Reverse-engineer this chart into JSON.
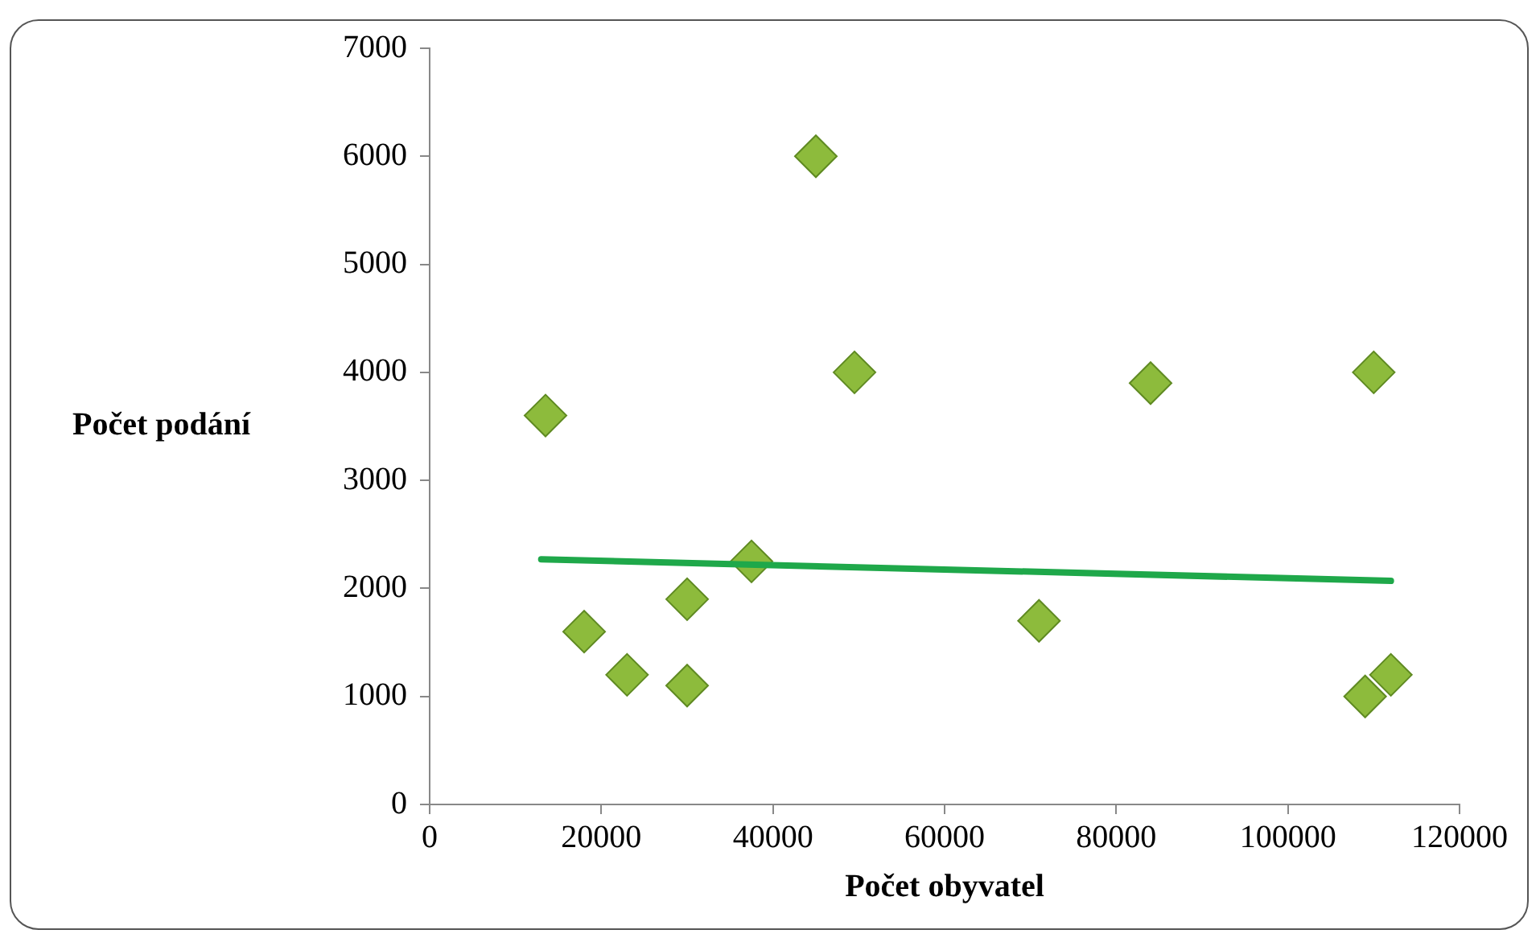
{
  "chart_data": {
    "type": "scatter",
    "xlabel": "Počet obyvatel",
    "ylabel": "Počet podání",
    "xlim": [
      0,
      120000
    ],
    "xticks": [
      0,
      20000,
      40000,
      60000,
      80000,
      100000,
      120000
    ],
    "ylim": [
      0,
      7000
    ],
    "yticks": [
      0,
      1000,
      2000,
      3000,
      4000,
      5000,
      6000,
      7000
    ],
    "grid": false,
    "legend": false,
    "marker": "diamond",
    "series": [
      {
        "type": "scatter",
        "color": "#8dbb3c",
        "x": [
          13500,
          18000,
          23000,
          30000,
          30000,
          37500,
          45000,
          49500,
          71000,
          84000,
          110000,
          109000,
          112000
        ],
        "values": [
          3600,
          1600,
          1200,
          1900,
          1100,
          2250,
          6000,
          4000,
          1700,
          3900,
          4000,
          1000,
          1200
        ]
      },
      {
        "type": "line",
        "color": "#1fa84a",
        "line_style": "solid",
        "marker": "none",
        "x": [
          13000,
          112000
        ],
        "values": [
          2270,
          2070
        ]
      }
    ]
  }
}
